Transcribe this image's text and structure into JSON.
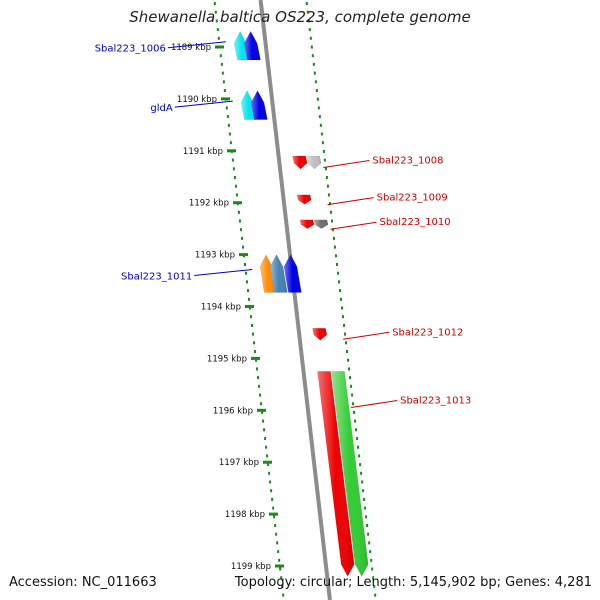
{
  "title": "Shewanella baltica OS223, complete genome",
  "accession": "Accession: NC_011663",
  "summary": "Topology: circular; Length: 5,145,902 bp; Genes: 4,281",
  "ticks": [
    "1189 kbp",
    "1190 kbp",
    "1191 kbp",
    "1192 kbp",
    "1193 kbp",
    "1194 kbp",
    "1195 kbp",
    "1196 kbp",
    "1197 kbp",
    "1198 kbp",
    "1199 kbp"
  ],
  "tick_kbp": [
    1189,
    1190,
    1191,
    1192,
    1193,
    1194,
    1195,
    1196,
    1197,
    1198,
    1199
  ],
  "label_colors": {
    "forward": "#0000cc",
    "reverse": "#cc0000"
  },
  "track_colors": {
    "backbone": "#8c8c8c",
    "tick": "#1a8a1a"
  },
  "features": [
    {
      "label": "Sbal223_1006",
      "strand": "forward",
      "color": "#00e5ee",
      "start": 1188.7,
      "end": 1189.25
    },
    {
      "label": "",
      "strand": "forward",
      "color": "#0000e6",
      "start": 1188.7,
      "end": 1189.25
    },
    {
      "label": "gldA",
      "strand": "forward",
      "color": "#00e5ee",
      "start": 1189.84,
      "end": 1190.4
    },
    {
      "label": "",
      "strand": "forward",
      "color": "#0000e6",
      "start": 1189.84,
      "end": 1190.4
    },
    {
      "label": "Sbal223_1008",
      "strand": "reverse",
      "color": "#ee0000",
      "start": 1191.1,
      "end": 1191.35
    },
    {
      "label": "",
      "strand": "reverse",
      "color": "#c0c0c0",
      "start": 1191.1,
      "end": 1191.35
    },
    {
      "label": "Sbal223_1009",
      "strand": "reverse",
      "color": "#ee0000",
      "start": 1191.85,
      "end": 1192.03
    },
    {
      "label": "Sbal223_1010",
      "strand": "reverse",
      "color": "#ee0000",
      "start": 1192.33,
      "end": 1192.5
    },
    {
      "label": "",
      "strand": "reverse",
      "color": "#6e6e6e",
      "start": 1192.33,
      "end": 1192.5
    },
    {
      "label": "Sbal223_1011",
      "strand": "forward",
      "color": "#ff8c00",
      "start": 1193.0,
      "end": 1193.73
    },
    {
      "label": "",
      "strand": "forward",
      "color": "#4682b4",
      "start": 1193.0,
      "end": 1193.73
    },
    {
      "label": "",
      "strand": "forward",
      "color": "#0000e6",
      "start": 1193.0,
      "end": 1193.73
    },
    {
      "label": "Sbal223_1012",
      "strand": "reverse",
      "color": "#ee0000",
      "start": 1194.42,
      "end": 1194.65
    },
    {
      "label": "Sbal223_1013",
      "strand": "reverse",
      "color": "#ee0000",
      "start": 1195.25,
      "end": 1199.2
    },
    {
      "label": "",
      "strand": "reverse",
      "color": "#33cc33",
      "start": 1195.25,
      "end": 1199.2
    }
  ]
}
